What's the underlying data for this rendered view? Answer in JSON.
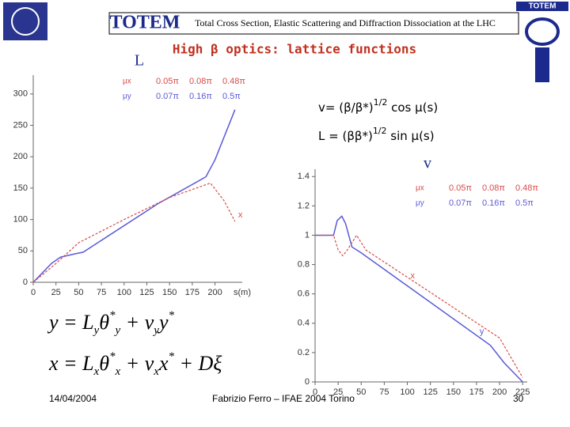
{
  "header": {
    "logo": "TOTEM",
    "title": "Total Cross Section, Elastic Scattering and Diffraction Dissociation at the LHC",
    "subtitle": "High β optics: lattice functions"
  },
  "formulas": [
    {
      "prefix": "v= (β/β*)",
      "sup": "1/2",
      "suffix": " cos μ(s)"
    },
    {
      "prefix": "L = (ββ*)",
      "sup": "1/2",
      "suffix": " sin μ(s)"
    }
  ],
  "equations": [
    [
      {
        "t": "y = L"
      },
      {
        "sub": "y"
      },
      {
        "t": "θ"
      },
      {
        "sup": "*"
      },
      {
        "sub": "y"
      },
      {
        "t": " + ν"
      },
      {
        "sub": "y"
      },
      {
        "t": "y"
      },
      {
        "sup": "*"
      }
    ],
    [
      {
        "t": "x = L"
      },
      {
        "sub": "x"
      },
      {
        "t": "θ"
      },
      {
        "sup": "*"
      },
      {
        "sub": "x"
      },
      {
        "t": " + ν"
      },
      {
        "sub": "x"
      },
      {
        "t": "x"
      },
      {
        "sup": "*"
      },
      {
        "t": " + Dξ"
      }
    ]
  ],
  "footer": {
    "date": "14/04/2004",
    "author": "Fabrizio Ferro – IFAE 2004 Torino",
    "page": "30"
  },
  "chart_data": [
    {
      "type": "line",
      "title": "L",
      "xlabel": "s(m)",
      "xlim": [
        0,
        230
      ],
      "xticks": [
        0,
        25,
        50,
        75,
        100,
        125,
        150,
        175,
        200
      ],
      "ylim": [
        0,
        330
      ],
      "yticks": [
        0,
        50,
        100,
        150,
        200,
        250,
        300
      ],
      "series": [
        {
          "color": "#5a5ad8",
          "dash": false,
          "x": [
            0,
            20,
            30,
            45,
            55,
            137,
            190,
            200,
            222
          ],
          "values": [
            0,
            30,
            40,
            45,
            48,
            125,
            168,
            195,
            275
          ]
        },
        {
          "color": "#d84a4a",
          "dash": true,
          "x": [
            0,
            25,
            50,
            100,
            150,
            195,
            210,
            222
          ],
          "values": [
            0,
            30,
            63,
            100,
            135,
            158,
            130,
            97
          ]
        }
      ],
      "annotations": [
        {
          "text": "x",
          "x": 222,
          "y": 97,
          "color": "#d84a4a"
        }
      ],
      "phase_table": {
        "rows": [
          {
            "label": "μx",
            "color": "#d84a4a",
            "cells": [
              "0.05π",
              "0.08π",
              "0.48π"
            ]
          },
          {
            "label": "μy",
            "color": "#5a5ad8",
            "cells": [
              "0.07π",
              "0.16π",
              "0.5π"
            ]
          }
        ]
      }
    },
    {
      "type": "line",
      "title": "v",
      "xlim": [
        0,
        230
      ],
      "xticks": [
        0,
        25,
        50,
        75,
        100,
        125,
        150,
        175,
        200,
        225
      ],
      "ylim": [
        0,
        1.45
      ],
      "yticks": [
        0,
        0.2,
        0.4,
        0.6,
        0.8,
        1,
        1.2,
        1.4
      ],
      "series": [
        {
          "color": "#5a5ad8",
          "dash": false,
          "x": [
            0,
            20,
            24,
            29,
            33,
            40,
            50,
            190,
            205,
            225
          ],
          "values": [
            1,
            1,
            1.1,
            1.13,
            1.08,
            0.92,
            0.88,
            0.25,
            0.13,
            0
          ]
        },
        {
          "color": "#d84a4a",
          "dash": true,
          "x": [
            0,
            20,
            25,
            30,
            35,
            45,
            55,
            200,
            225
          ],
          "values": [
            1,
            1,
            0.9,
            0.86,
            0.9,
            1,
            0.9,
            0.3,
            0.03
          ]
        }
      ],
      "annotations": [
        {
          "text": "y",
          "x": 175,
          "y": 0.3,
          "color": "#5a5ad8"
        },
        {
          "text": "x",
          "x": 100,
          "y": 0.68,
          "color": "#d84a4a"
        }
      ],
      "phase_table": {
        "rows": [
          {
            "label": "μx",
            "color": "#d84a4a",
            "cells": [
              "0.05π",
              "0.08π",
              "0.48π"
            ]
          },
          {
            "label": "μy",
            "color": "#5a5ad8",
            "cells": [
              "0.07π",
              "0.16π",
              "0.5π"
            ]
          }
        ]
      }
    }
  ]
}
